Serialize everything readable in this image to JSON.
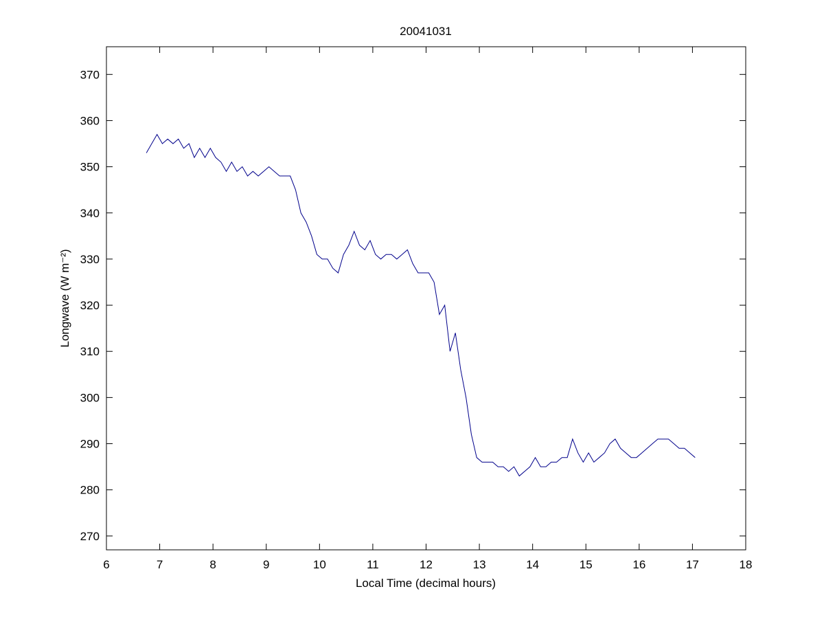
{
  "chart_data": {
    "type": "line",
    "title": "20041031",
    "x_label": "Local Time (decimal hours)",
    "y_label": "Longwave (W m⁻²)",
    "xlim": [
      6,
      18
    ],
    "xticks": [
      6,
      7,
      8,
      9,
      10,
      11,
      12,
      13,
      14,
      15,
      16,
      17,
      18
    ],
    "ylim": [
      267,
      376
    ],
    "yticks": [
      270,
      280,
      290,
      300,
      310,
      320,
      330,
      340,
      350,
      360,
      370
    ],
    "grid": false,
    "series": [
      {
        "color": "#00008b",
        "x": [
          6.75,
          6.85,
          6.95,
          7.05,
          7.15,
          7.25,
          7.35,
          7.45,
          7.55,
          7.65,
          7.75,
          7.85,
          7.95,
          8.05,
          8.15,
          8.25,
          8.35,
          8.45,
          8.55,
          8.65,
          8.75,
          8.85,
          8.95,
          9.05,
          9.15,
          9.25,
          9.35,
          9.45,
          9.55,
          9.65,
          9.75,
          9.85,
          9.95,
          10.05,
          10.15,
          10.25,
          10.35,
          10.45,
          10.55,
          10.65,
          10.75,
          10.85,
          10.95,
          11.05,
          11.15,
          11.25,
          11.35,
          11.45,
          11.55,
          11.65,
          11.75,
          11.85,
          11.95,
          12.05,
          12.15,
          12.25,
          12.35,
          12.45,
          12.55,
          12.65,
          12.75,
          12.85,
          12.95,
          13.05,
          13.15,
          13.25,
          13.35,
          13.45,
          13.55,
          13.65,
          13.75,
          13.85,
          13.95,
          14.05,
          14.15,
          14.25,
          14.35,
          14.45,
          14.55,
          14.65,
          14.75,
          14.85,
          14.95,
          15.05,
          15.15,
          15.25,
          15.35,
          15.45,
          15.55,
          15.65,
          15.75,
          15.85,
          15.95,
          16.05,
          16.15,
          16.25,
          16.35,
          16.45,
          16.55,
          16.65,
          16.75,
          16.85,
          16.95,
          17.05
        ],
        "values": [
          353,
          355,
          357,
          355,
          356,
          355,
          356,
          354,
          355,
          352,
          354,
          352,
          354,
          352,
          351,
          349,
          351,
          349,
          350,
          348,
          349,
          348,
          349,
          350,
          349,
          348,
          348,
          348,
          345,
          340,
          338,
          335,
          331,
          330,
          330,
          328,
          327,
          331,
          333,
          336,
          333,
          332,
          334,
          331,
          330,
          331,
          331,
          330,
          331,
          332,
          329,
          327,
          327,
          327,
          325,
          318,
          320,
          310,
          314,
          306,
          300,
          292,
          287,
          286,
          286,
          286,
          285,
          285,
          284,
          285,
          283,
          284,
          285,
          287,
          285,
          285,
          286,
          286,
          287,
          287,
          291,
          288,
          286,
          288,
          286,
          287,
          288,
          290,
          291,
          289,
          288,
          287,
          287,
          288,
          289,
          290,
          291,
          291,
          291,
          290,
          289,
          289,
          288,
          287
        ]
      }
    ]
  }
}
